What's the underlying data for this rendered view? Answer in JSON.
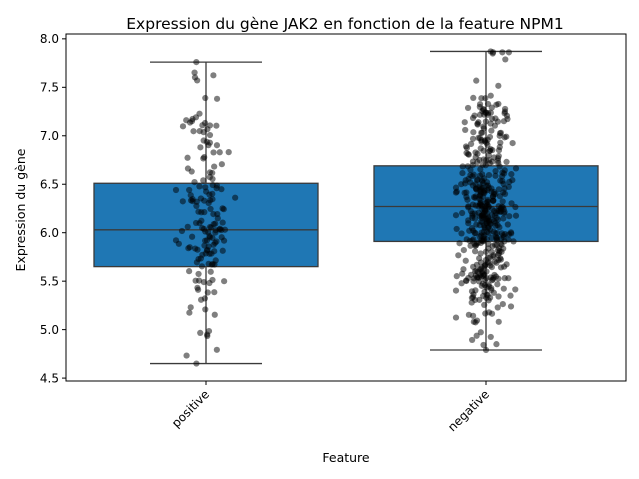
{
  "chart_data": {
    "type": "box",
    "title": "Expression du gène JAK2 en fonction de la feature NPM1",
    "xlabel": "Feature",
    "ylabel": "Expression du gène",
    "ylim": [
      4.47,
      8.05
    ],
    "yticks": [
      "4.5",
      "5.0",
      "5.5",
      "6.0",
      "6.5",
      "7.0",
      "7.5",
      "8.0"
    ],
    "ytick_values": [
      4.5,
      5.0,
      5.5,
      6.0,
      6.5,
      7.0,
      7.5,
      8.0
    ],
    "categories": [
      "positive",
      "negative"
    ],
    "boxes": [
      {
        "category": "positive",
        "whislo": 4.65,
        "q1": 5.65,
        "med": 6.03,
        "q3": 6.51,
        "whishi": 7.76,
        "n_points": 160
      },
      {
        "category": "negative",
        "whislo": 4.79,
        "q1": 5.91,
        "med": 6.27,
        "q3": 6.69,
        "whishi": 7.87,
        "n_points": 480
      }
    ],
    "box_color": "#1f77b4",
    "point_color": "#000000",
    "grid": false,
    "legend": "none"
  }
}
